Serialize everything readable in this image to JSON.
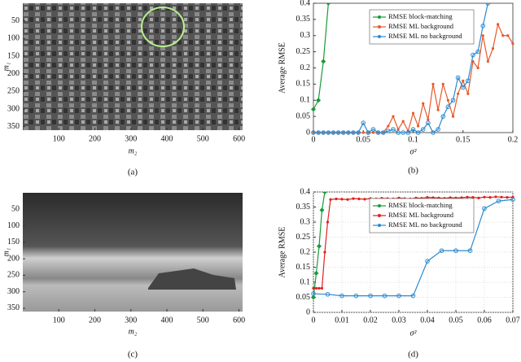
{
  "chart_data": [
    {
      "type": "image",
      "xlabel": "m₂",
      "ylabel": "m₁",
      "caption": "(a)",
      "scene": "aerial",
      "xlim": [
        0,
        610
      ],
      "ylim": [
        360,
        0
      ],
      "xticks": [
        100,
        200,
        300,
        400,
        500,
        600
      ],
      "yticks": [
        50,
        100,
        150,
        200,
        250,
        300,
        350
      ]
    },
    {
      "type": "line",
      "xlabel": "σ²",
      "ylabel": "Average RMSE",
      "caption": "(b)",
      "grid": false,
      "legend": "upper right",
      "xlim": [
        0,
        0.2
      ],
      "ylim": [
        0,
        0.4
      ],
      "xticks": [
        0,
        0.05,
        0.1,
        0.15,
        0.2
      ],
      "yticks": [
        0,
        0.05,
        0.1,
        0.15,
        0.2,
        0.25,
        0.3,
        0.35,
        0.4
      ],
      "series": [
        {
          "name": "RMSE block-matching",
          "color": "#1a9a3a",
          "marker": "diamond",
          "x": [
            0,
            0.005,
            0.01,
            0.015
          ],
          "values": [
            0.072,
            0.1,
            0.22,
            0.4
          ]
        },
        {
          "name": "RMSE ML background",
          "color": "#e8592a",
          "marker": "dot",
          "x": [
            0,
            0.005,
            0.01,
            0.015,
            0.02,
            0.025,
            0.03,
            0.035,
            0.04,
            0.045,
            0.05,
            0.055,
            0.06,
            0.065,
            0.07,
            0.075,
            0.08,
            0.085,
            0.09,
            0.095,
            0.1,
            0.105,
            0.11,
            0.115,
            0.12,
            0.125,
            0.13,
            0.135,
            0.14,
            0.145,
            0.15,
            0.155,
            0.16,
            0.165,
            0.17,
            0.175,
            0.18,
            0.185,
            0.19,
            0.195,
            0.2
          ],
          "values": [
            0,
            0,
            0,
            0,
            0,
            0,
            0,
            0,
            0,
            0,
            0,
            0,
            0,
            0,
            0,
            0.02,
            0.05,
            0.01,
            0.035,
            0.005,
            0.06,
            0.02,
            0.09,
            0.04,
            0.15,
            0.07,
            0.15,
            0.1,
            0.05,
            0.12,
            0.16,
            0.12,
            0.22,
            0.2,
            0.3,
            0.22,
            0.26,
            0.335,
            0.3,
            0.3,
            0.275
          ]
        },
        {
          "name": "RMSE ML no background",
          "color": "#2a8ad0",
          "marker": "circle",
          "x": [
            0,
            0.005,
            0.01,
            0.015,
            0.02,
            0.025,
            0.03,
            0.035,
            0.04,
            0.045,
            0.05,
            0.055,
            0.06,
            0.065,
            0.07,
            0.075,
            0.08,
            0.085,
            0.09,
            0.095,
            0.1,
            0.105,
            0.11,
            0.115,
            0.12,
            0.125,
            0.13,
            0.135,
            0.14,
            0.145,
            0.15,
            0.155,
            0.16,
            0.165,
            0.17,
            0.175
          ],
          "values": [
            0,
            0,
            0,
            0,
            0,
            0,
            0,
            0,
            0,
            0,
            0.03,
            0,
            0.01,
            0,
            0,
            0.005,
            0.01,
            0,
            0,
            0,
            0.01,
            0,
            0.01,
            0.03,
            0,
            0.01,
            0.05,
            0.08,
            0.1,
            0.17,
            0.14,
            0.16,
            0.24,
            0.25,
            0.33,
            0.4
          ]
        }
      ]
    },
    {
      "type": "image",
      "xlabel": "m₂",
      "ylabel": "m₁",
      "caption": "(c)",
      "scene": "street",
      "xlim": [
        0,
        610
      ],
      "ylim": [
        360,
        0
      ],
      "xticks": [
        100,
        200,
        300,
        400,
        500,
        600
      ],
      "yticks": [
        50,
        100,
        150,
        200,
        250,
        300,
        350
      ]
    },
    {
      "type": "line",
      "xlabel": "σ²",
      "ylabel": "Average RMSE",
      "caption": "(d)",
      "grid": true,
      "legend": "upper right",
      "xlim": [
        0,
        0.07
      ],
      "ylim": [
        0,
        0.4
      ],
      "xticks": [
        0,
        0.01,
        0.02,
        0.03,
        0.04,
        0.05,
        0.06,
        0.07
      ],
      "yticks": [
        0,
        0.05,
        0.1,
        0.15,
        0.2,
        0.25,
        0.3,
        0.35,
        0.4
      ],
      "series": [
        {
          "name": "RMSE block-matching",
          "color": "#1a9a3a",
          "marker": "diamond",
          "x": [
            0,
            0.001,
            0.002,
            0.003,
            0.004
          ],
          "values": [
            0.05,
            0.13,
            0.22,
            0.34,
            0.4
          ]
        },
        {
          "name": "RMSE ML background",
          "color": "#e02020",
          "marker": "dot",
          "x": [
            0,
            0.001,
            0.002,
            0.003,
            0.004,
            0.005,
            0.006,
            0.008,
            0.01,
            0.012,
            0.014,
            0.016,
            0.018,
            0.02,
            0.022,
            0.024,
            0.026,
            0.028,
            0.03,
            0.032,
            0.034,
            0.036,
            0.038,
            0.04,
            0.042,
            0.044,
            0.046,
            0.048,
            0.05,
            0.052,
            0.054,
            0.056,
            0.058,
            0.06,
            0.062,
            0.064,
            0.066,
            0.068,
            0.07
          ],
          "values": [
            0.08,
            0.08,
            0.08,
            0.08,
            0.2,
            0.3,
            0.375,
            0.377,
            0.376,
            0.375,
            0.378,
            0.377,
            0.376,
            0.378,
            0.377,
            0.379,
            0.378,
            0.377,
            0.38,
            0.378,
            0.377,
            0.38,
            0.379,
            0.382,
            0.381,
            0.38,
            0.379,
            0.381,
            0.38,
            0.381,
            0.383,
            0.382,
            0.38,
            0.383,
            0.382,
            0.384,
            0.383,
            0.382,
            0.383
          ]
        },
        {
          "name": "RMSE ML no background",
          "color": "#2a8ad0",
          "marker": "circle",
          "x": [
            0,
            0.005,
            0.01,
            0.015,
            0.02,
            0.025,
            0.03,
            0.035,
            0.04,
            0.045,
            0.05,
            0.055,
            0.06,
            0.065,
            0.07
          ],
          "values": [
            0.062,
            0.06,
            0.055,
            0.055,
            0.055,
            0.055,
            0.055,
            0.055,
            0.17,
            0.205,
            0.205,
            0.205,
            0.345,
            0.37,
            0.375
          ]
        }
      ]
    }
  ]
}
